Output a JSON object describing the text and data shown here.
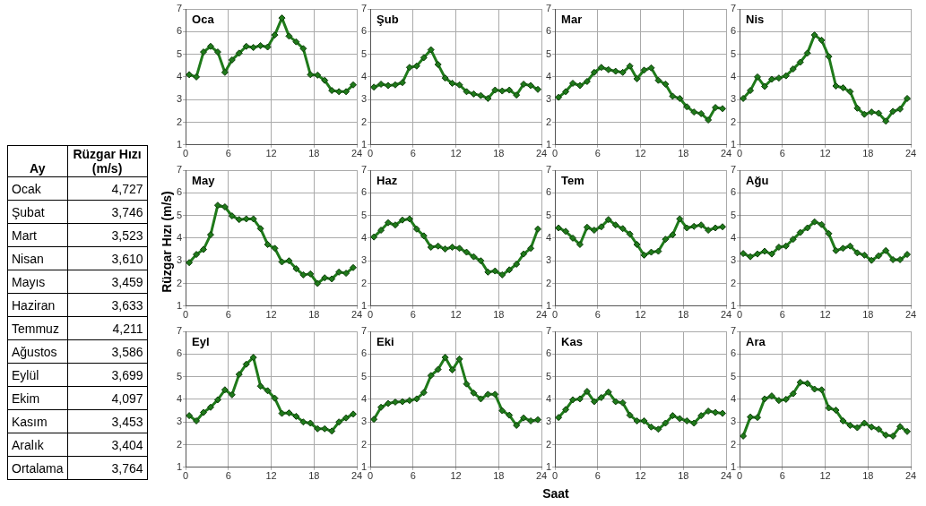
{
  "chart_data": [
    {
      "type": "other",
      "xlabel": "Ay",
      "ylabel": "Rüzgar Hızı (m/s)",
      "categories": [
        "Ocak",
        "Şubat",
        "Mart",
        "Nisan",
        "Mayıs",
        "Haziran",
        "Temmuz",
        "Ağustos",
        "Eylül",
        "Ekim",
        "Kasım",
        "Aralık",
        "Ortalama"
      ],
      "annotations": [
        "4,727",
        "3,746",
        "3,523",
        "3,610",
        "3,459",
        "3,633",
        "4,211",
        "3,586",
        "3,699",
        "4,097",
        "3,453",
        "3,404",
        "3,764"
      ]
    },
    {
      "type": "line",
      "title": "Oca",
      "x": [
        0.5,
        1.5,
        2.5,
        3.5,
        4.5,
        5.5,
        6.5,
        7.5,
        8.5,
        9.5,
        10.5,
        11.5,
        12.5,
        13.5,
        14.5,
        15.5,
        16.5,
        17.5,
        18.5,
        19.5,
        20.5,
        21.5,
        22.5,
        23.5
      ],
      "series": [
        {
          "color": "#1f7a1a",
          "values": [
            4.1,
            4.0,
            5.1,
            5.35,
            5.1,
            4.2,
            4.75,
            5.05,
            5.35,
            5.3,
            5.38,
            5.32,
            5.85,
            6.6,
            5.8,
            5.55,
            5.25,
            4.1,
            4.08,
            3.85,
            3.4,
            3.35,
            3.35,
            3.65
          ]
        }
      ],
      "xlim": [
        0,
        24
      ],
      "xticks": [
        0,
        6,
        12,
        18,
        24
      ],
      "ylim": [
        1,
        7
      ],
      "yticks": [
        1,
        2,
        3,
        4,
        5,
        6,
        7
      ],
      "grid": true,
      "marker": "diamond"
    },
    {
      "type": "line",
      "title": "Şub",
      "x": [
        0.5,
        1.5,
        2.5,
        3.5,
        4.5,
        5.5,
        6.5,
        7.5,
        8.5,
        9.5,
        10.5,
        11.5,
        12.5,
        13.5,
        14.5,
        15.5,
        16.5,
        17.5,
        18.5,
        19.5,
        20.5,
        21.5,
        22.5,
        23.5
      ],
      "series": [
        {
          "color": "#1f7a1a",
          "values": [
            3.55,
            3.68,
            3.62,
            3.65,
            3.75,
            4.42,
            4.48,
            4.85,
            5.2,
            4.55,
            3.95,
            3.72,
            3.65,
            3.35,
            3.25,
            3.18,
            3.05,
            3.42,
            3.38,
            3.42,
            3.2,
            3.68,
            3.62,
            3.45
          ]
        }
      ],
      "xlim": [
        0,
        24
      ],
      "xticks": [
        0,
        6,
        12,
        18,
        24
      ],
      "ylim": [
        1,
        7
      ],
      "yticks": [
        1,
        2,
        3,
        4,
        5,
        6,
        7
      ],
      "grid": true,
      "marker": "diamond"
    },
    {
      "type": "line",
      "title": "Mar",
      "x": [
        0.5,
        1.5,
        2.5,
        3.5,
        4.5,
        5.5,
        6.5,
        7.5,
        8.5,
        9.5,
        10.5,
        11.5,
        12.5,
        13.5,
        14.5,
        15.5,
        16.5,
        17.5,
        18.5,
        19.5,
        20.5,
        21.5,
        22.5,
        23.5
      ],
      "series": [
        {
          "color": "#1f7a1a",
          "values": [
            3.1,
            3.35,
            3.72,
            3.62,
            3.8,
            4.2,
            4.42,
            4.32,
            4.25,
            4.2,
            4.48,
            3.92,
            4.3,
            4.4,
            3.85,
            3.68,
            3.15,
            3.05,
            2.68,
            2.45,
            2.38,
            2.1,
            2.65,
            2.6
          ]
        }
      ],
      "xlim": [
        0,
        24
      ],
      "xticks": [
        0,
        6,
        12,
        18,
        24
      ],
      "ylim": [
        1,
        7
      ],
      "yticks": [
        1,
        2,
        3,
        4,
        5,
        6,
        7
      ],
      "grid": true,
      "marker": "diamond"
    },
    {
      "type": "line",
      "title": "Nis",
      "x": [
        0.5,
        1.5,
        2.5,
        3.5,
        4.5,
        5.5,
        6.5,
        7.5,
        8.5,
        9.5,
        10.5,
        11.5,
        12.5,
        13.5,
        14.5,
        15.5,
        16.5,
        17.5,
        18.5,
        19.5,
        20.5,
        21.5,
        22.5,
        23.5
      ],
      "series": [
        {
          "color": "#1f7a1a",
          "values": [
            3.05,
            3.4,
            4.0,
            3.58,
            3.9,
            3.95,
            4.05,
            4.35,
            4.65,
            5.05,
            5.85,
            5.62,
            4.9,
            3.6,
            3.52,
            3.35,
            2.62,
            2.35,
            2.45,
            2.4,
            2.05,
            2.48,
            2.58,
            3.05
          ]
        }
      ],
      "xlim": [
        0,
        24
      ],
      "xticks": [
        0,
        6,
        12,
        18,
        24
      ],
      "ylim": [
        1,
        7
      ],
      "yticks": [
        1,
        2,
        3,
        4,
        5,
        6,
        7
      ],
      "grid": true,
      "marker": "diamond"
    },
    {
      "type": "line",
      "title": "May",
      "ylabel": "Rüzgar Hızı (m/s)",
      "x": [
        0.5,
        1.5,
        2.5,
        3.5,
        4.5,
        5.5,
        6.5,
        7.5,
        8.5,
        9.5,
        10.5,
        11.5,
        12.5,
        13.5,
        14.5,
        15.5,
        16.5,
        17.5,
        18.5,
        19.5,
        20.5,
        21.5,
        22.5,
        23.5
      ],
      "series": [
        {
          "color": "#1f7a1a",
          "values": [
            2.92,
            3.28,
            3.5,
            4.15,
            5.45,
            5.38,
            4.98,
            4.82,
            4.85,
            4.85,
            4.42,
            3.72,
            3.55,
            2.95,
            3.0,
            2.65,
            2.38,
            2.42,
            2.0,
            2.25,
            2.2,
            2.5,
            2.45,
            2.7
          ]
        }
      ],
      "xlim": [
        0,
        24
      ],
      "xticks": [
        0,
        6,
        12,
        18,
        24
      ],
      "ylim": [
        1,
        7
      ],
      "yticks": [
        1,
        2,
        3,
        4,
        5,
        6,
        7
      ],
      "grid": true,
      "marker": "diamond"
    },
    {
      "type": "line",
      "title": "Haz",
      "x": [
        0.5,
        1.5,
        2.5,
        3.5,
        4.5,
        5.5,
        6.5,
        7.5,
        8.5,
        9.5,
        10.5,
        11.5,
        12.5,
        13.5,
        14.5,
        15.5,
        16.5,
        17.5,
        18.5,
        19.5,
        20.5,
        21.5,
        22.5,
        23.5
      ],
      "series": [
        {
          "color": "#1f7a1a",
          "values": [
            4.05,
            4.35,
            4.68,
            4.58,
            4.8,
            4.85,
            4.4,
            4.1,
            3.6,
            3.65,
            3.52,
            3.6,
            3.55,
            3.38,
            3.18,
            3.0,
            2.5,
            2.55,
            2.38,
            2.6,
            2.85,
            3.3,
            3.55,
            4.4
          ]
        }
      ],
      "xlim": [
        0,
        24
      ],
      "xticks": [
        0,
        6,
        12,
        18,
        24
      ],
      "ylim": [
        1,
        7
      ],
      "yticks": [
        1,
        2,
        3,
        4,
        5,
        6,
        7
      ],
      "grid": true,
      "marker": "diamond"
    },
    {
      "type": "line",
      "title": "Tem",
      "x": [
        0.5,
        1.5,
        2.5,
        3.5,
        4.5,
        5.5,
        6.5,
        7.5,
        8.5,
        9.5,
        10.5,
        11.5,
        12.5,
        13.5,
        14.5,
        15.5,
        16.5,
        17.5,
        18.5,
        19.5,
        20.5,
        21.5,
        22.5,
        23.5
      ],
      "series": [
        {
          "color": "#1f7a1a",
          "values": [
            4.45,
            4.3,
            4.0,
            3.72,
            4.48,
            4.35,
            4.5,
            4.82,
            4.58,
            4.42,
            4.18,
            3.72,
            3.25,
            3.38,
            3.42,
            3.95,
            4.15,
            4.85,
            4.45,
            4.52,
            4.58,
            4.35,
            4.45,
            4.5
          ]
        }
      ],
      "xlim": [
        0,
        24
      ],
      "xticks": [
        0,
        6,
        12,
        18,
        24
      ],
      "ylim": [
        1,
        7
      ],
      "yticks": [
        1,
        2,
        3,
        4,
        5,
        6,
        7
      ],
      "grid": true,
      "marker": "diamond"
    },
    {
      "type": "line",
      "title": "Ağu",
      "x": [
        0.5,
        1.5,
        2.5,
        3.5,
        4.5,
        5.5,
        6.5,
        7.5,
        8.5,
        9.5,
        10.5,
        11.5,
        12.5,
        13.5,
        14.5,
        15.5,
        16.5,
        17.5,
        18.5,
        19.5,
        20.5,
        21.5,
        22.5,
        23.5
      ],
      "series": [
        {
          "color": "#1f7a1a",
          "values": [
            3.32,
            3.18,
            3.3,
            3.42,
            3.3,
            3.6,
            3.65,
            3.95,
            4.25,
            4.45,
            4.72,
            4.6,
            4.2,
            3.45,
            3.55,
            3.65,
            3.35,
            3.25,
            3.02,
            3.22,
            3.45,
            3.05,
            3.05,
            3.28
          ]
        }
      ],
      "xlim": [
        0,
        24
      ],
      "xticks": [
        0,
        6,
        12,
        18,
        24
      ],
      "ylim": [
        1,
        7
      ],
      "yticks": [
        1,
        2,
        3,
        4,
        5,
        6,
        7
      ],
      "grid": true,
      "marker": "diamond"
    },
    {
      "type": "line",
      "title": "Eyl",
      "x": [
        0.5,
        1.5,
        2.5,
        3.5,
        4.5,
        5.5,
        6.5,
        7.5,
        8.5,
        9.5,
        10.5,
        11.5,
        12.5,
        13.5,
        14.5,
        15.5,
        16.5,
        17.5,
        18.5,
        19.5,
        20.5,
        21.5,
        22.5,
        23.5
      ],
      "series": [
        {
          "color": "#1f7a1a",
          "values": [
            3.28,
            3.05,
            3.42,
            3.65,
            3.98,
            4.42,
            4.2,
            5.1,
            5.55,
            5.85,
            4.58,
            4.38,
            4.05,
            3.38,
            3.4,
            3.25,
            3.0,
            2.95,
            2.7,
            2.7,
            2.6,
            3.0,
            3.18,
            3.35
          ]
        }
      ],
      "xlim": [
        0,
        24
      ],
      "xticks": [
        0,
        6,
        12,
        18,
        24
      ],
      "ylim": [
        1,
        7
      ],
      "yticks": [
        1,
        2,
        3,
        4,
        5,
        6,
        7
      ],
      "grid": true,
      "marker": "diamond"
    },
    {
      "type": "line",
      "title": "Eki",
      "xlabel": "Saat",
      "x": [
        0.5,
        1.5,
        2.5,
        3.5,
        4.5,
        5.5,
        6.5,
        7.5,
        8.5,
        9.5,
        10.5,
        11.5,
        12.5,
        13.5,
        14.5,
        15.5,
        16.5,
        17.5,
        18.5,
        19.5,
        20.5,
        21.5,
        22.5,
        23.5
      ],
      "series": [
        {
          "color": "#1f7a1a",
          "values": [
            3.12,
            3.65,
            3.82,
            3.88,
            3.9,
            3.95,
            4.02,
            4.3,
            5.05,
            5.32,
            5.85,
            5.3,
            5.78,
            4.68,
            4.28,
            4.02,
            4.22,
            4.22,
            3.5,
            3.3,
            2.85,
            3.18,
            3.05,
            3.1
          ]
        }
      ],
      "xlim": [
        0,
        24
      ],
      "xticks": [
        0,
        6,
        12,
        18,
        24
      ],
      "ylim": [
        1,
        7
      ],
      "yticks": [
        1,
        2,
        3,
        4,
        5,
        6,
        7
      ],
      "grid": true,
      "marker": "diamond"
    },
    {
      "type": "line",
      "title": "Kas",
      "x": [
        0.5,
        1.5,
        2.5,
        3.5,
        4.5,
        5.5,
        6.5,
        7.5,
        8.5,
        9.5,
        10.5,
        11.5,
        12.5,
        13.5,
        14.5,
        15.5,
        16.5,
        17.5,
        18.5,
        19.5,
        20.5,
        21.5,
        22.5,
        23.5
      ],
      "series": [
        {
          "color": "#1f7a1a",
          "values": [
            3.2,
            3.55,
            3.98,
            4.02,
            4.35,
            3.9,
            4.08,
            4.32,
            3.9,
            3.85,
            3.3,
            3.05,
            3.05,
            2.78,
            2.68,
            2.95,
            3.28,
            3.15,
            3.05,
            2.95,
            3.28,
            3.48,
            3.42,
            3.38
          ]
        }
      ],
      "xlim": [
        0,
        24
      ],
      "xticks": [
        0,
        6,
        12,
        18,
        24
      ],
      "ylim": [
        1,
        7
      ],
      "yticks": [
        1,
        2,
        3,
        4,
        5,
        6,
        7
      ],
      "grid": true,
      "marker": "diamond"
    },
    {
      "type": "line",
      "title": "Ara",
      "x": [
        0.5,
        1.5,
        2.5,
        3.5,
        4.5,
        5.5,
        6.5,
        7.5,
        8.5,
        9.5,
        10.5,
        11.5,
        12.5,
        13.5,
        14.5,
        15.5,
        16.5,
        17.5,
        18.5,
        19.5,
        20.5,
        21.5,
        22.5,
        23.5
      ],
      "series": [
        {
          "color": "#1f7a1a",
          "values": [
            2.38,
            3.22,
            3.2,
            4.02,
            4.15,
            3.95,
            4.0,
            4.25,
            4.75,
            4.7,
            4.45,
            4.42,
            3.62,
            3.52,
            3.05,
            2.85,
            2.75,
            2.95,
            2.78,
            2.68,
            2.42,
            2.38,
            2.8,
            2.58
          ]
        }
      ],
      "xlim": [
        0,
        24
      ],
      "xticks": [
        0,
        6,
        12,
        18,
        24
      ],
      "ylim": [
        1,
        7
      ],
      "yticks": [
        1,
        2,
        3,
        4,
        5,
        6,
        7
      ],
      "grid": true,
      "marker": "diamond"
    }
  ]
}
